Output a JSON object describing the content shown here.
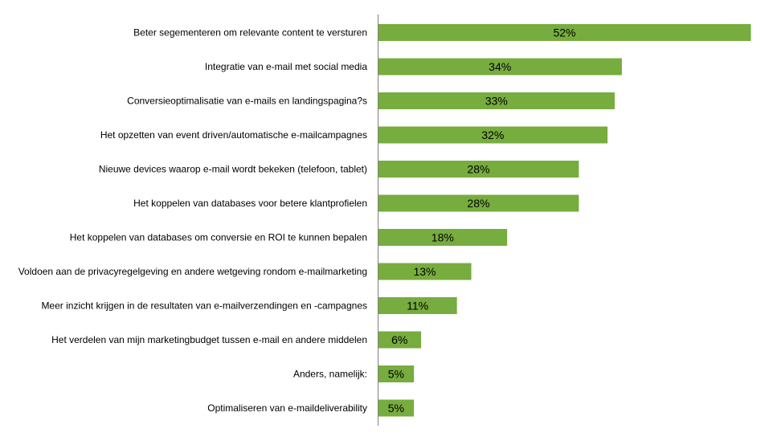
{
  "chart_data": {
    "type": "bar",
    "orientation": "horizontal",
    "categories": [
      "Beter segementeren om relevante content te versturen",
      "Integratie van e-mail met social media",
      "Conversieoptimalisatie van e-mails en landingspagina?s",
      "Het opzetten van event driven/automatische e-mailcampagnes",
      "Nieuwe devices waarop e-mail wordt bekeken (telefoon, tablet)",
      "Het koppelen van databases voor betere klantprofielen",
      "Het koppelen van databases om conversie en ROI te kunnen bepalen",
      "Voldoen aan de privacyregelgeving en andere wetgeving rondom e-mailmarketing",
      "Meer inzicht krijgen in de resultaten van e-mailverzendingen en -campagnes",
      "Het verdelen van mijn marketingbudget tussen e-mail en andere middelen",
      "Anders, namelijk:",
      "Optimaliseren van e-maildeliverability"
    ],
    "values": [
      52,
      34,
      33,
      32,
      28,
      28,
      18,
      13,
      11,
      6,
      5,
      5
    ],
    "data_labels": [
      "52%",
      "34%",
      "33%",
      "32%",
      "28%",
      "28%",
      "18%",
      "13%",
      "11%",
      "6%",
      "5%",
      "5%"
    ],
    "title": "",
    "xlabel": "",
    "ylabel": "",
    "xlim": [
      0,
      52
    ],
    "grid": false,
    "legend": "none",
    "bar_color": "#77AC3E",
    "axis_color": "#7F7F7F"
  }
}
